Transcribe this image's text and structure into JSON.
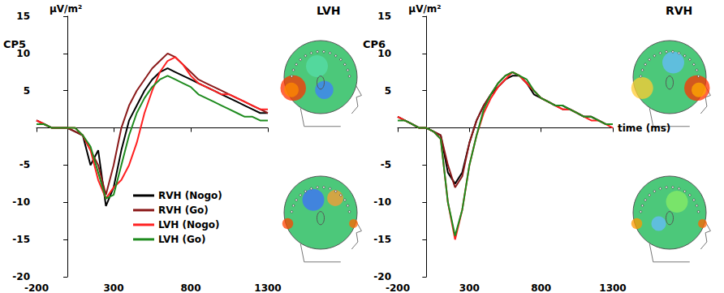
{
  "chart_data": [
    {
      "type": "line",
      "title": "CP5",
      "y_label": "μV/m²",
      "annotations": [
        "LVH"
      ],
      "grid": false,
      "legend": "bottom",
      "xlim": [
        -200,
        1300
      ],
      "xticks": [
        -200,
        300,
        800,
        1300
      ],
      "ylim": [
        -20,
        15
      ],
      "yticks": [
        -20,
        -15,
        -10,
        -5,
        5,
        10,
        15
      ],
      "x": [
        -200,
        -150,
        -100,
        -50,
        0,
        50,
        100,
        150,
        200,
        250,
        300,
        350,
        400,
        450,
        500,
        550,
        600,
        650,
        700,
        750,
        800,
        850,
        900,
        950,
        1000,
        1050,
        1100,
        1150,
        1200,
        1250,
        1300
      ],
      "series": [
        {
          "name": "RVH (Nogo)",
          "color": "#000000",
          "line_style": "solid",
          "values": [
            1,
            0.5,
            0,
            0,
            0,
            -0.5,
            -1,
            -5,
            -3,
            -10.5,
            -8,
            -3,
            1,
            3,
            5,
            6.5,
            7.5,
            8,
            7.5,
            7,
            6.5,
            6,
            5.5,
            5,
            4.5,
            4,
            3.5,
            3,
            2.5,
            2,
            2
          ]
        },
        {
          "name": "RVH (Go)",
          "color": "#8b1a1a",
          "line_style": "solid",
          "values": [
            1,
            0.5,
            0,
            0,
            0,
            -0.5,
            -1,
            -3,
            -5,
            -9,
            -5,
            0,
            3,
            5,
            6.5,
            8,
            9,
            10,
            9.5,
            8.5,
            7.5,
            6.5,
            6,
            5.5,
            5,
            4.5,
            4,
            3.5,
            3,
            2.5,
            2
          ]
        },
        {
          "name": "LVH (Nogo)",
          "color": "#ff2020",
          "line_style": "solid",
          "values": [
            1,
            0.5,
            0,
            0,
            0,
            0,
            -1,
            -3,
            -7,
            -9.5,
            -8,
            -7,
            -5,
            -2,
            2,
            5,
            7.5,
            9,
            9.5,
            8.5,
            7,
            6,
            5.5,
            5,
            4.5,
            4.5,
            4,
            3.5,
            3,
            2.5,
            2.5
          ]
        },
        {
          "name": "LVH (Go)",
          "color": "#1e8b1e",
          "line_style": "solid",
          "values": [
            0.5,
            0.5,
            0,
            0,
            0,
            0,
            -1,
            -2.5,
            -6,
            -9.5,
            -9,
            -5,
            -1,
            2,
            4,
            5.5,
            6.5,
            7,
            6.5,
            6,
            5.5,
            4.5,
            4,
            3.5,
            3,
            2.5,
            2,
            1.5,
            1.5,
            1,
            1
          ]
        }
      ]
    },
    {
      "type": "line",
      "title": "CP6",
      "y_label": "μV/m²",
      "x_label": "time (ms)",
      "annotations": [
        "RVH"
      ],
      "grid": false,
      "xlim": [
        -200,
        1300
      ],
      "xticks": [
        -200,
        300,
        800,
        1300
      ],
      "ylim": [
        -20,
        15
      ],
      "yticks": [
        -20,
        -15,
        -10,
        -5,
        5,
        10,
        15
      ],
      "x": [
        -200,
        -150,
        -100,
        -50,
        0,
        50,
        100,
        150,
        200,
        250,
        300,
        350,
        400,
        450,
        500,
        550,
        600,
        650,
        700,
        750,
        800,
        850,
        900,
        950,
        1000,
        1050,
        1100,
        1150,
        1200,
        1250,
        1300
      ],
      "series": [
        {
          "name": "RVH (Nogo)",
          "color": "#000000",
          "line_style": "solid",
          "values": [
            1.5,
            1,
            0.5,
            0,
            0,
            -0.5,
            -1,
            -6,
            -7.5,
            -6,
            -2,
            1,
            3,
            4.5,
            5.5,
            6.5,
            7,
            7,
            6,
            4.5,
            4,
            3.5,
            3,
            3,
            2.5,
            2,
            1.5,
            1.5,
            1,
            0.5,
            0.5
          ]
        },
        {
          "name": "RVH (Go)",
          "color": "#8b1a1a",
          "line_style": "solid",
          "values": [
            1.5,
            1,
            0.5,
            0,
            0,
            -0.5,
            -1,
            -5,
            -8,
            -6.5,
            -2,
            1,
            3,
            4.5,
            6,
            7,
            7.5,
            7,
            6,
            5,
            4,
            3.5,
            3,
            2.5,
            2.5,
            2,
            1.5,
            1.5,
            1,
            0.5,
            0.5
          ]
        },
        {
          "name": "LVH (Nogo)",
          "color": "#ff2020",
          "line_style": "solid",
          "values": [
            1.5,
            1,
            0.5,
            0,
            0,
            -0.5,
            -1.5,
            -10,
            -15,
            -11,
            -5,
            -1,
            2,
            4,
            5.5,
            6.5,
            7.5,
            7,
            6,
            5,
            4,
            3.5,
            3,
            2.5,
            2.5,
            2,
            1.5,
            1,
            1,
            0.5,
            0
          ]
        },
        {
          "name": "LVH (Go)",
          "color": "#1e8b1e",
          "line_style": "solid",
          "values": [
            1,
            1,
            0.5,
            0,
            0,
            -0.5,
            -1.5,
            -10,
            -14.5,
            -11,
            -5,
            -1,
            2.5,
            4.5,
            6,
            7,
            7.5,
            7,
            6.5,
            5,
            4,
            3.5,
            3,
            3,
            2.5,
            2,
            1.5,
            1.5,
            1,
            0.5,
            0.5
          ]
        }
      ]
    }
  ]
}
